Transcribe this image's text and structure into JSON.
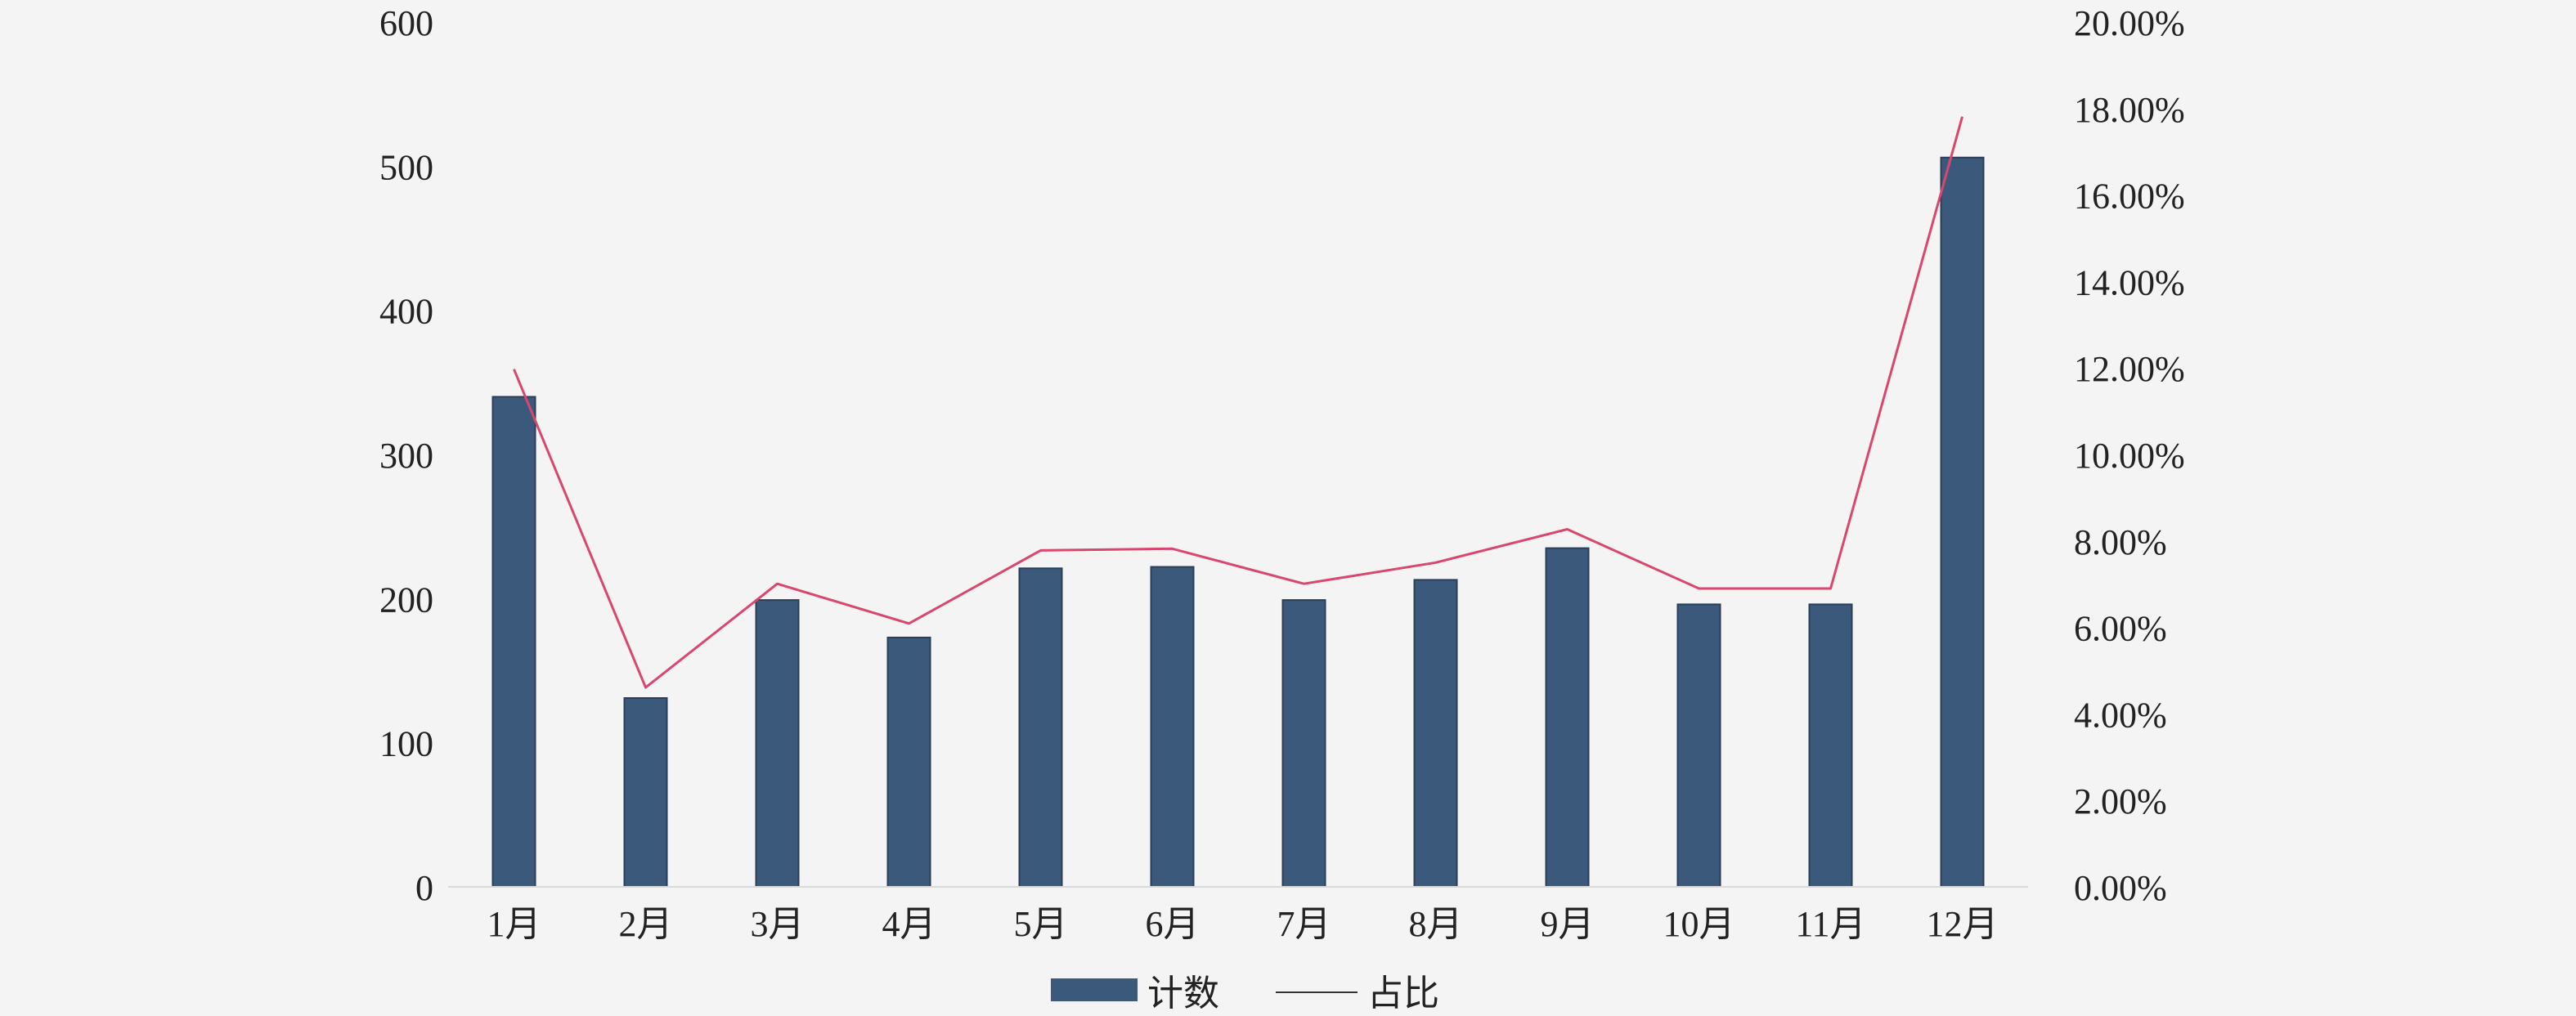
{
  "chart_data": {
    "type": "bar",
    "categories": [
      "1月",
      "2月",
      "3月",
      "4月",
      "5月",
      "6月",
      "7月",
      "8月",
      "9月",
      "10月",
      "11月",
      "12月"
    ],
    "series": [
      {
        "name": "计数",
        "type": "bar",
        "axis": "left",
        "color": "#3b5a7b",
        "values": [
          340,
          131,
          199,
          173,
          221,
          222,
          199,
          213,
          235,
          196,
          196,
          506
        ]
      },
      {
        "name": "占比",
        "type": "line",
        "axis": "right",
        "color": "#d9466f",
        "values": [
          0.1197,
          0.0461,
          0.0701,
          0.0609,
          0.0778,
          0.0782,
          0.0701,
          0.075,
          0.0827,
          0.069,
          0.069,
          0.1781
        ]
      }
    ],
    "y_left": {
      "ylim": [
        0,
        600
      ],
      "ticks": [
        "0",
        "100",
        "200",
        "300",
        "400",
        "500",
        "600"
      ]
    },
    "y_right": {
      "ylim": [
        0,
        0.2
      ],
      "ticks": [
        "0.00%",
        "2.00%",
        "4.00%",
        "6.00%",
        "8.00%",
        "10.00%",
        "12.00%",
        "14.00%",
        "16.00%",
        "18.00%",
        "20.00%"
      ]
    },
    "title": "",
    "xlabel": "",
    "ylabel": "",
    "legend": {
      "position": "bottom",
      "items": [
        "计数",
        "占比"
      ]
    },
    "grid": false
  }
}
